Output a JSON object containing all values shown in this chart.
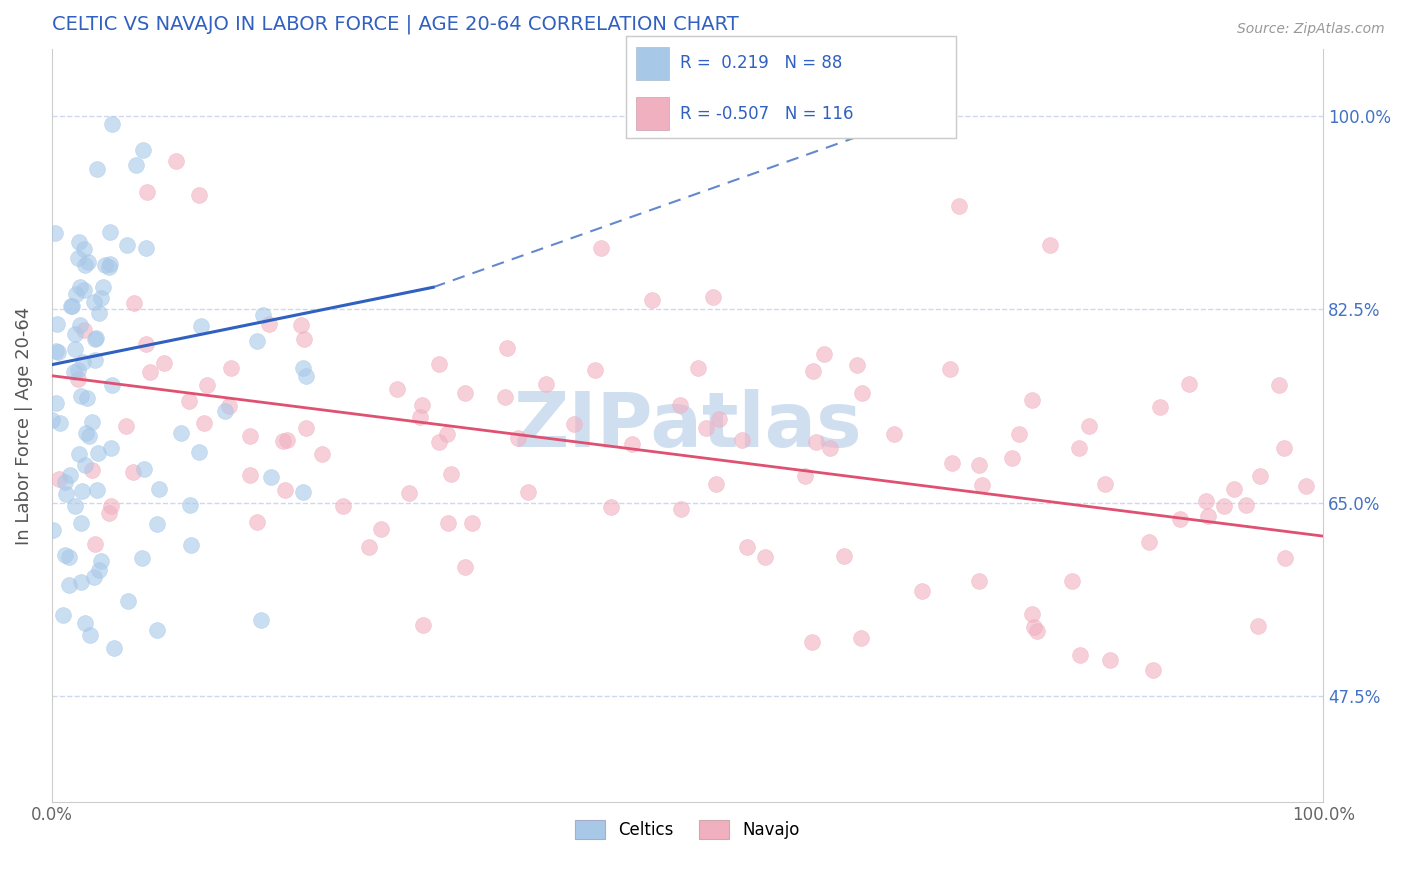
{
  "title": "CELTIC VS NAVAJO IN LABOR FORCE | AGE 20-64 CORRELATION CHART",
  "source_text": "Source: ZipAtlas.com",
  "ylabel": "In Labor Force | Age 20-64",
  "xlim": [
    0.0,
    1.0
  ],
  "ylim": [
    0.38,
    1.06
  ],
  "x_tick_labels": [
    "0.0%",
    "100.0%"
  ],
  "y_ticks": [
    0.475,
    0.65,
    0.825,
    1.0
  ],
  "y_tick_labels": [
    "47.5%",
    "65.0%",
    "82.5%",
    "100.0%"
  ],
  "celtics_color": "#a8c8e8",
  "navajo_color": "#f0b0c0",
  "celtics_line_color": "#3060c0",
  "navajo_line_color": "#e05070",
  "celtics_R": 0.219,
  "celtics_N": 88,
  "navajo_R": -0.507,
  "navajo_N": 116,
  "legend_R_color": "#3060c0",
  "background_color": "#ffffff",
  "grid_color": "#d0d8f0",
  "title_color": "#3060c0",
  "watermark_text": "ZIPatlas",
  "watermark_color": "#d0dff0",
  "scatter_alpha": 0.6,
  "scatter_size": 130,
  "scatter_linewidth": 0.5,
  "celtics_line_start_x": 0.0,
  "celtics_line_start_y": 0.775,
  "celtics_line_solid_end_x": 0.3,
  "celtics_line_solid_end_y": 0.845,
  "celtics_line_dash_end_x": 0.68,
  "celtics_line_dash_end_y": 1.0,
  "navajo_line_start_x": 0.0,
  "navajo_line_start_y": 0.765,
  "navajo_line_end_x": 1.0,
  "navajo_line_end_y": 0.62
}
